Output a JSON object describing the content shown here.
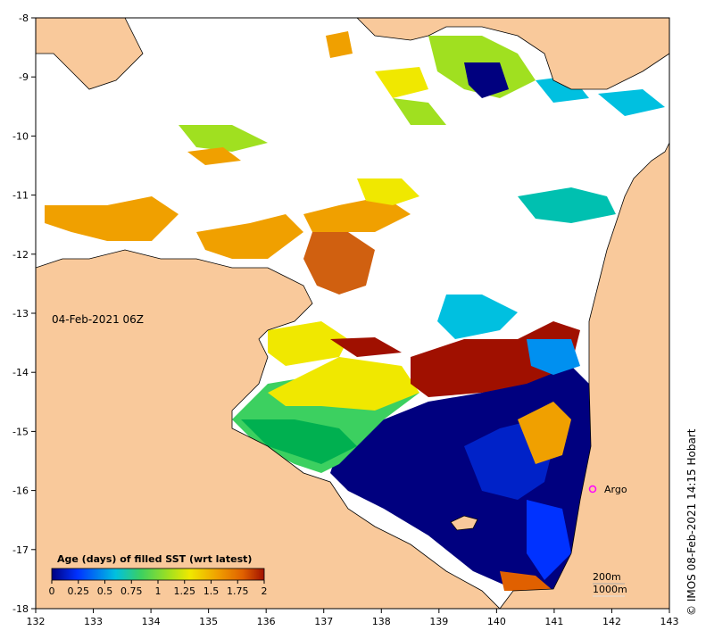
{
  "map": {
    "timestamp": "04-Feb-2021 06Z",
    "credit": "© IMOS 08-Feb-2021 14:15 Hobart",
    "legend": {
      "title": "Age (days) of filled SST (wrt latest)",
      "ticks": [
        "0",
        "0.25",
        "0.5",
        "0.75",
        "1",
        "1.25",
        "1.5",
        "1.75",
        "2"
      ]
    },
    "argo_label": "Argo",
    "isobaths": [
      "200m",
      "1000m"
    ],
    "axes": {
      "x_ticks": [
        "132",
        "133",
        "134",
        "135",
        "136",
        "137",
        "138",
        "139",
        "140",
        "141",
        "142",
        "143"
      ],
      "y_ticks": [
        "-8",
        "-9",
        "-10",
        "-11",
        "-12",
        "-13",
        "-14",
        "-15",
        "-16",
        "-17",
        "-18"
      ],
      "x_range": [
        132,
        143
      ],
      "y_range": [
        -18,
        -8
      ]
    },
    "colors": {
      "land": "#f9c99b",
      "no_data": "#ffffff",
      "colormap": [
        "#00007f",
        "#0032ff",
        "#00c0e0",
        "#3cd060",
        "#a0e020",
        "#f0e800",
        "#f0a000",
        "#e06000",
        "#a01000"
      ]
    }
  }
}
